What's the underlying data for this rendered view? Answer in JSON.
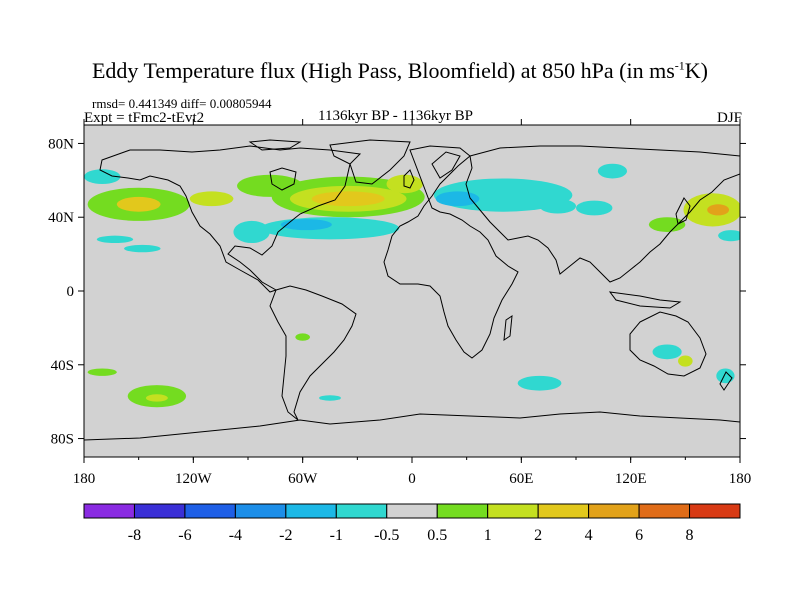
{
  "title_main": "Eddy Temperature flux (High Pass, Bloomfield) at 850 hPa (in ms",
  "title_sup": "-1",
  "title_tail": "K)",
  "stats": "rmsd= 0.441349 diff= 0.00805944",
  "expt": "Expt = tFmc2-tEvt2",
  "period": "1136kyr BP - 1136kyr BP",
  "season": "DJF",
  "map": {
    "lon_range": [
      -180,
      180
    ],
    "lat_range": [
      -90,
      90
    ],
    "background_color": "#d2d2d2",
    "lat_ticks": [
      {
        "value": 80,
        "label": "80N"
      },
      {
        "value": 40,
        "label": "40N"
      },
      {
        "value": 0,
        "label": "0"
      },
      {
        "value": -40,
        "label": "40S"
      },
      {
        "value": -80,
        "label": "80S"
      }
    ],
    "lon_ticks": [
      {
        "value": -180,
        "label": "180"
      },
      {
        "value": -120,
        "label": "120W"
      },
      {
        "value": -60,
        "label": "60W"
      },
      {
        "value": 0,
        "label": "0"
      },
      {
        "value": 60,
        "label": "60E"
      },
      {
        "value": 120,
        "label": "120E"
      },
      {
        "value": 180,
        "label": "180"
      }
    ]
  },
  "colorbar": {
    "colors": [
      "#8a2be2",
      "#3a2fd6",
      "#1e5fe6",
      "#1c8ee8",
      "#1cb8e6",
      "#30d8d0",
      "#d2d2d2",
      "#74dc20",
      "#c4e020",
      "#e2c81c",
      "#e2a21a",
      "#e06c18",
      "#d83a14"
    ],
    "labels": [
      "-8",
      "-6",
      "-4",
      "-2",
      "-1",
      "-0.5",
      "0.5",
      "1",
      "2",
      "4",
      "6",
      "8"
    ]
  },
  "anomalies": [
    {
      "lon": -150,
      "lat": 47,
      "rx": 28,
      "ry": 9,
      "level": 7
    },
    {
      "lon": -150,
      "lat": 47,
      "rx": 12,
      "ry": 4,
      "level": 9
    },
    {
      "lon": -170,
      "lat": 62,
      "rx": 10,
      "ry": 4,
      "level": 5
    },
    {
      "lon": -110,
      "lat": 50,
      "rx": 12,
      "ry": 4,
      "level": 8
    },
    {
      "lon": -78,
      "lat": 57,
      "rx": 18,
      "ry": 6,
      "level": 7
    },
    {
      "lon": -35,
      "lat": 51,
      "rx": 42,
      "ry": 11,
      "level": 7
    },
    {
      "lon": -35,
      "lat": 50,
      "rx": 32,
      "ry": 7,
      "level": 8
    },
    {
      "lon": -35,
      "lat": 50,
      "rx": 20,
      "ry": 4,
      "level": 9
    },
    {
      "lon": -4,
      "lat": 58,
      "rx": 10,
      "ry": 5,
      "level": 8
    },
    {
      "lon": -45,
      "lat": 34,
      "rx": 38,
      "ry": 6,
      "level": 5
    },
    {
      "lon": -58,
      "lat": 36,
      "rx": 14,
      "ry": 3,
      "level": 4
    },
    {
      "lon": -88,
      "lat": 32,
      "rx": 10,
      "ry": 6,
      "level": 5
    },
    {
      "lon": 50,
      "lat": 52,
      "rx": 38,
      "ry": 9,
      "level": 5
    },
    {
      "lon": 25,
      "lat": 50,
      "rx": 12,
      "ry": 4,
      "level": 4
    },
    {
      "lon": 80,
      "lat": 46,
      "rx": 10,
      "ry": 4,
      "level": 5
    },
    {
      "lon": 100,
      "lat": 45,
      "rx": 10,
      "ry": 4,
      "level": 5
    },
    {
      "lon": 110,
      "lat": 65,
      "rx": 8,
      "ry": 4,
      "level": 5
    },
    {
      "lon": 165,
      "lat": 44,
      "rx": 16,
      "ry": 9,
      "level": 8
    },
    {
      "lon": 168,
      "lat": 44,
      "rx": 6,
      "ry": 3,
      "level": 10
    },
    {
      "lon": 140,
      "lat": 36,
      "rx": 10,
      "ry": 4,
      "level": 7
    },
    {
      "lon": 175,
      "lat": 30,
      "rx": 7,
      "ry": 3,
      "level": 5
    },
    {
      "lon": -163,
      "lat": 28,
      "rx": 10,
      "ry": 2,
      "level": 5
    },
    {
      "lon": -148,
      "lat": 23,
      "rx": 10,
      "ry": 2,
      "level": 5
    },
    {
      "lon": -140,
      "lat": -57,
      "rx": 16,
      "ry": 6,
      "level": 7
    },
    {
      "lon": -140,
      "lat": -58,
      "rx": 6,
      "ry": 2,
      "level": 8
    },
    {
      "lon": -170,
      "lat": -44,
      "rx": 8,
      "ry": 2,
      "level": 7
    },
    {
      "lon": -60,
      "lat": -25,
      "rx": 4,
      "ry": 2,
      "level": 7
    },
    {
      "lon": -45,
      "lat": -58,
      "rx": 6,
      "ry": 1.5,
      "level": 5
    },
    {
      "lon": 70,
      "lat": -50,
      "rx": 12,
      "ry": 4,
      "level": 5
    },
    {
      "lon": 140,
      "lat": -33,
      "rx": 8,
      "ry": 4,
      "level": 5
    },
    {
      "lon": 150,
      "lat": -38,
      "rx": 4,
      "ry": 3,
      "level": 8
    },
    {
      "lon": 172,
      "lat": -46,
      "rx": 5,
      "ry": 4,
      "level": 5
    }
  ]
}
